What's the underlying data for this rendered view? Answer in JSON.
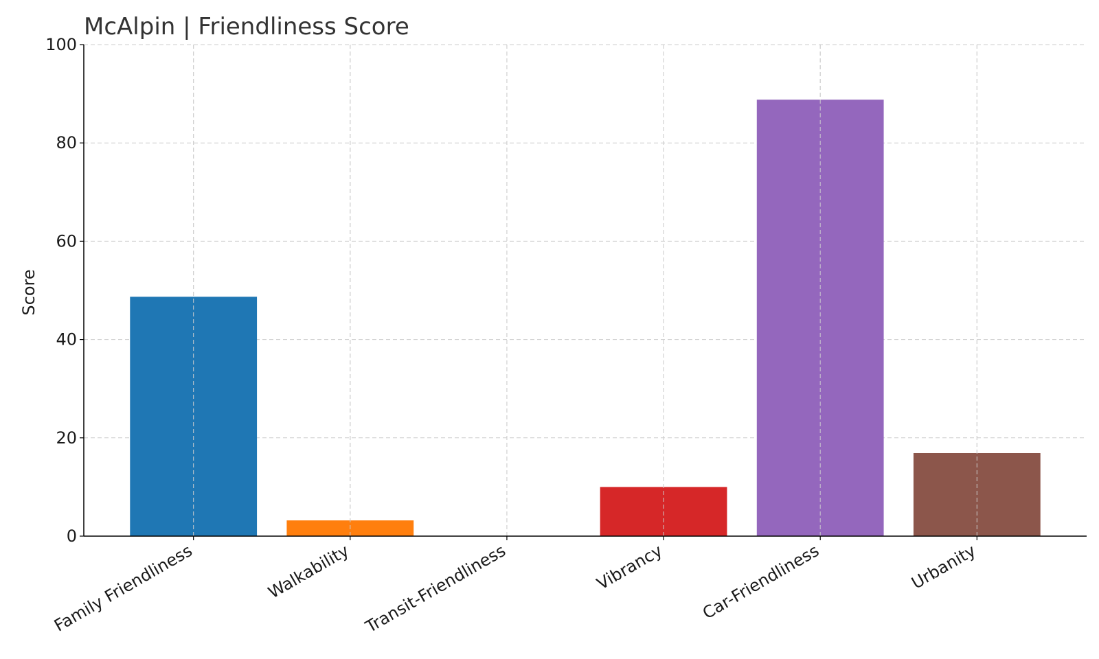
{
  "chart_data": {
    "type": "bar",
    "title": "McAlpin |  Friendliness Score",
    "xlabel": "",
    "ylabel": "Score",
    "ylim": [
      0,
      100
    ],
    "yticks": [
      0,
      20,
      40,
      60,
      80,
      100
    ],
    "grid": true,
    "categories": [
      "Family Friendliness",
      "Walkability",
      "Transit-Friendliness",
      "Vibrancy",
      "Car-Friendliness",
      "Urbanity"
    ],
    "values": [
      48.7,
      3.2,
      0,
      10,
      88.8,
      16.9
    ],
    "colors": [
      "#1f77b4",
      "#ff7f0e",
      "#2ca02c",
      "#d62728",
      "#9467bd",
      "#8c564b"
    ]
  }
}
